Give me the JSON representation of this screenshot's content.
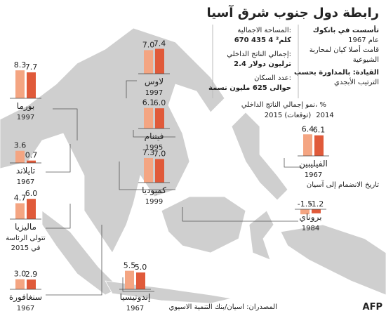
{
  "header": {
    "title": "رابطة دول جنوب شرق آسيا"
  },
  "info": {
    "founded_label": "تأسست في بانكوك",
    "founded_year": "عام 1967",
    "purpose_1": "قامت أصلا كيان لمحاربة",
    "purpose_2": "الشيوعية",
    "leadership_1": "القيادة: بالمداورة بحسب",
    "leadership_2": "الترتيب الأبجدي",
    "area_label": "المساحة الاجمالية:",
    "area_value": "670 435 4 كلم²",
    "gdp_label": "إجمالي الناتج الداخلي:",
    "gdp_value": "2.4 ترليون دولار",
    "population_label": "عدد السكان:",
    "population_value": "حوالى 625 مليون نسمة"
  },
  "legend": {
    "title": "نمو إجمالي الناتج الداخلي، %",
    "series": [
      {
        "name": "2014",
        "color": "#f4a582"
      },
      {
        "name": "2015 (توقعات)",
        "color": "#e05a3a"
      }
    ],
    "join_label": "تاريخ الانضمام إلى آسيان"
  },
  "countries": [
    {
      "name": "بورما",
      "year": "1997",
      "values": [
        8.3,
        7.7
      ],
      "value_labels": [
        "8.3",
        "7.7"
      ]
    },
    {
      "name": "لاوس",
      "year": "1997",
      "values": [
        7.0,
        7.4
      ],
      "value_labels": [
        "7.0",
        "7.4"
      ]
    },
    {
      "name": "فيتنام",
      "year": "1995",
      "values": [
        6.1,
        6.0
      ],
      "value_labels": [
        "6.1",
        "6.0"
      ]
    },
    {
      "name": "كمبوديا",
      "year": "1999",
      "values": [
        7.3,
        7.0
      ],
      "value_labels": [
        "7.3",
        "7.0"
      ]
    },
    {
      "name": "تايلاند",
      "year": "1967",
      "values": [
        3.6,
        0.7
      ],
      "value_labels": [
        "3.6",
        "0.7"
      ]
    },
    {
      "name": "ماليزيا",
      "note": [
        "تتولى الرئاسة",
        "في 2015"
      ],
      "values": [
        4.7,
        6.0
      ],
      "value_labels": [
        "4.7",
        "6.0"
      ]
    },
    {
      "name": "سنغافورة",
      "year": "1967",
      "values": [
        3.0,
        2.9
      ],
      "value_labels": [
        "3.0",
        "2.9"
      ]
    },
    {
      "name": "إندونيسيا",
      "year": "1967",
      "values": [
        5.5,
        5.0
      ],
      "value_labels": [
        "5.5",
        "5.0"
      ]
    },
    {
      "name": "الفيليبين",
      "year": "1967",
      "values": [
        6.4,
        6.1
      ],
      "value_labels": [
        "6.4",
        "6.1"
      ]
    },
    {
      "name": "بروناي",
      "year": "1984",
      "values": [
        -1.5,
        -1.2
      ],
      "value_labels": [
        "-1.5",
        "-1.2"
      ]
    }
  ],
  "footer": {
    "source": "المصدران: اسيان/بنك التنمية الاسيوي",
    "agency": "AFP"
  }
}
